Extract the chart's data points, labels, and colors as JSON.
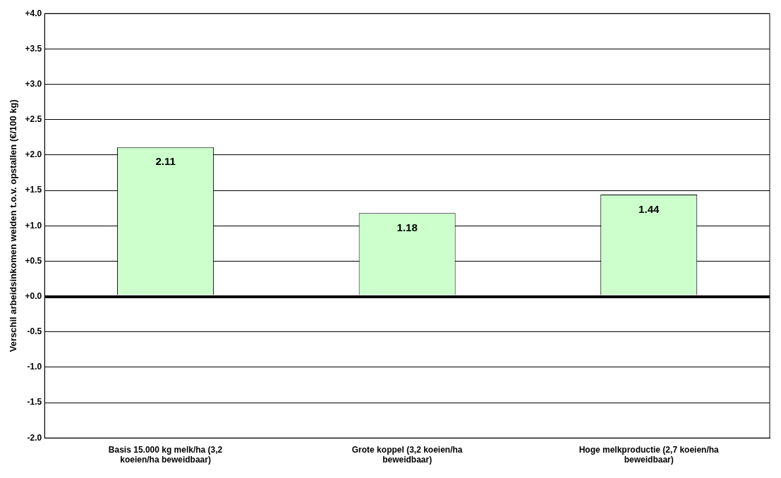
{
  "chart_data": {
    "type": "bar",
    "ylabel": "Verschil arbeidsinkomen weiden t.o.v. opstallen (€/100 kg)",
    "categories": [
      "Basis 15.000 kg melk/ha (3,2 koeien/ha beweidbaar)",
      "Grote koppel (3,2 koeien/ha beweidbaar)",
      "Hoge melkproductie (2,7 koeien/ha beweidbaar)"
    ],
    "values": [
      2.11,
      1.18,
      1.44
    ],
    "color": "#ccffcc",
    "ylim": [
      -2.0,
      4.0
    ],
    "yticks": [
      {
        "value": -2.0,
        "label": "-2.0"
      },
      {
        "value": -1.5,
        "label": "-1.5"
      },
      {
        "value": -1.0,
        "label": "-1.0"
      },
      {
        "value": -0.5,
        "label": "-0.5"
      },
      {
        "value": 0.0,
        "label": "+0.0"
      },
      {
        "value": 0.5,
        "label": "+0.5"
      },
      {
        "value": 1.0,
        "label": "+1.0"
      },
      {
        "value": 1.5,
        "label": "+1.5"
      },
      {
        "value": 2.0,
        "label": "+2.0"
      },
      {
        "value": 2.5,
        "label": "+2.5"
      },
      {
        "value": 3.0,
        "label": "+3.0"
      },
      {
        "value": 3.5,
        "label": "+3.5"
      },
      {
        "value": 4.0,
        "label": "+4.0"
      }
    ],
    "grid": "y",
    "data_labels": true,
    "legend": false
  }
}
